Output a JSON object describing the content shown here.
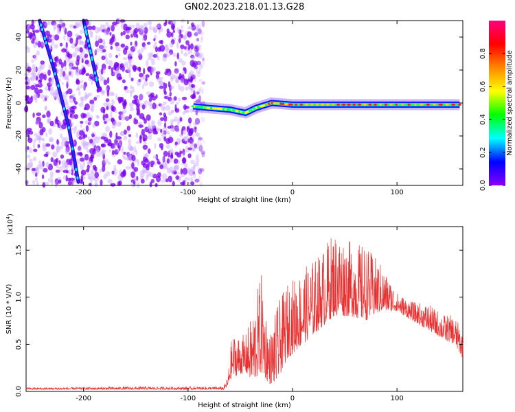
{
  "title": "GN02.2023.218.01.13.G28",
  "chart_data": [
    {
      "type": "heatmap",
      "xlabel": "Height of straight line (km)",
      "ylabel": "Frequency (Hz)",
      "xlim": [
        -255,
        163
      ],
      "ylim": [
        -50,
        50
      ],
      "x_ticks": [
        -200,
        -100,
        0,
        100
      ],
      "y_ticks": [
        -40,
        -20,
        0,
        20,
        40
      ],
      "grid": false,
      "colorbar": {
        "label": "Normalized spectral amplitude",
        "range": [
          0.0,
          1.0
        ],
        "ticks": [
          "0.0",
          "0.2",
          "0.4",
          "0.6",
          "0.8"
        ],
        "colormap": [
          "#8800ff",
          "#0000ff",
          "#00ffff",
          "#00ff00",
          "#ffff00",
          "#ff8800",
          "#ff0000",
          "#ff0080"
        ]
      },
      "features": [
        {
          "name": "noise",
          "x_range": [
            -255,
            -85
          ],
          "y_range": [
            -50,
            50
          ],
          "amplitude": 0.1
        },
        {
          "name": "trace-1",
          "points": [
            [
              -242,
              50
            ],
            [
              -226,
              15
            ],
            [
              -214,
              -15
            ],
            [
              -205,
              -48
            ]
          ],
          "amplitude": 0.35
        },
        {
          "name": "trace-2",
          "points": [
            [
              -200,
              50
            ],
            [
              -186,
              10
            ]
          ],
          "amplitude": 0.3
        },
        {
          "name": "main-line",
          "points": [
            [
              -95,
              -2
            ],
            [
              -80,
              -3
            ],
            [
              -60,
              -4
            ],
            [
              -45,
              -6
            ],
            [
              -35,
              -3
            ],
            [
              -20,
              0
            ],
            [
              0,
              -1
            ],
            [
              50,
              -1
            ],
            [
              100,
              -1
            ],
            [
              160,
              -1
            ]
          ],
          "amplitude": 0.8
        }
      ]
    },
    {
      "type": "line",
      "xlabel": "Height of straight line (km)",
      "ylabel": "SNR (10 * V/V)",
      "y_multiplier": "(x10",
      "y_multiplier_exp": "4",
      "y_multiplier_close": ")",
      "xlim": [
        -255,
        163
      ],
      "ylim": [
        0,
        1.75
      ],
      "x_ticks": [
        -200,
        -100,
        0,
        100
      ],
      "y_ticks": [
        "0.0",
        "0.5",
        "1.0",
        "1.5"
      ],
      "grid": false,
      "color": "#e83232",
      "envelope": [
        {
          "x": -255,
          "base": 0.02,
          "peak": 0.04
        },
        {
          "x": -150,
          "base": 0.02,
          "peak": 0.05
        },
        {
          "x": -66,
          "base": 0.02,
          "peak": 0.05
        },
        {
          "x": -62,
          "base": 0.05,
          "peak": 0.15
        },
        {
          "x": -58,
          "base": 0.15,
          "peak": 0.6
        },
        {
          "x": -45,
          "base": 0.2,
          "peak": 0.6
        },
        {
          "x": -38,
          "base": 0.1,
          "peak": 0.85
        },
        {
          "x": -30,
          "base": 0.2,
          "peak": 1.27
        },
        {
          "x": -22,
          "base": 0.08,
          "peak": 0.6
        },
        {
          "x": -15,
          "base": 0.1,
          "peak": 0.9
        },
        {
          "x": -5,
          "base": 0.35,
          "peak": 1.15
        },
        {
          "x": 10,
          "base": 0.5,
          "peak": 1.3
        },
        {
          "x": 25,
          "base": 0.65,
          "peak": 1.45
        },
        {
          "x": 40,
          "base": 0.8,
          "peak": 1.72
        },
        {
          "x": 55,
          "base": 0.8,
          "peak": 1.6
        },
        {
          "x": 70,
          "base": 0.75,
          "peak": 1.55
        },
        {
          "x": 85,
          "base": 0.85,
          "peak": 1.35
        },
        {
          "x": 100,
          "base": 0.85,
          "peak": 1.05
        },
        {
          "x": 115,
          "base": 0.75,
          "peak": 0.95
        },
        {
          "x": 130,
          "base": 0.65,
          "peak": 0.93
        },
        {
          "x": 145,
          "base": 0.55,
          "peak": 0.82
        },
        {
          "x": 155,
          "base": 0.5,
          "peak": 0.8
        },
        {
          "x": 163,
          "base": 0.35,
          "peak": 0.65
        }
      ]
    }
  ]
}
